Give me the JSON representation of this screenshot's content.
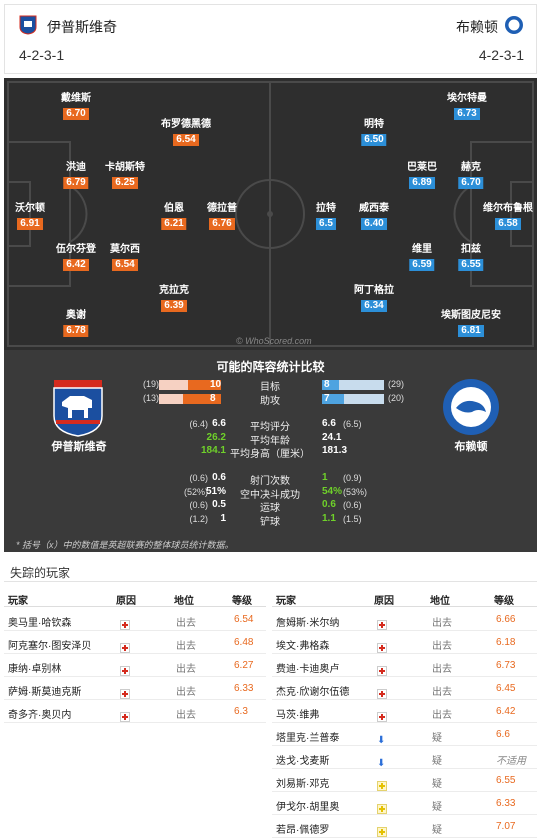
{
  "header": {
    "home_team": "伊普斯维奇",
    "away_team": "布赖顿",
    "home_formation": "4-2-3-1",
    "away_formation": "4-2-3-1"
  },
  "pitch": {
    "note": "© WhoScored.com",
    "home_players": [
      {
        "name": "戴维斯",
        "rating": "6.70"
      },
      {
        "name": "布罗德黑德",
        "rating": "6.54"
      },
      {
        "name": "洪迪",
        "rating": "6.79"
      },
      {
        "name": "卡胡斯特",
        "rating": "6.25"
      },
      {
        "name": "沃尔顿",
        "rating": "6.91"
      },
      {
        "name": "伯恩",
        "rating": "6.21"
      },
      {
        "name": "德拉普",
        "rating": "6.76"
      },
      {
        "name": "伍尔芬登",
        "rating": "6.42"
      },
      {
        "name": "莫尔西",
        "rating": "6.54"
      },
      {
        "name": "克拉克",
        "rating": "6.39"
      },
      {
        "name": "奥谢",
        "rating": "6.78"
      }
    ],
    "away_players": [
      {
        "name": "埃尔特曼",
        "rating": "6.73"
      },
      {
        "name": "明特",
        "rating": "6.50"
      },
      {
        "name": "巴莱巴",
        "rating": "6.89"
      },
      {
        "name": "赫克",
        "rating": "6.70"
      },
      {
        "name": "拉特",
        "rating": "6.5"
      },
      {
        "name": "威西泰",
        "rating": "6.40"
      },
      {
        "name": "维尔布鲁根",
        "rating": "6.58"
      },
      {
        "name": "维里",
        "rating": "6.59"
      },
      {
        "name": "扣兹",
        "rating": "6.55"
      },
      {
        "name": "阿丁格拉",
        "rating": "6.34"
      },
      {
        "name": "埃斯图皮尼安",
        "rating": "6.81"
      }
    ]
  },
  "compare": {
    "title": "可能的阵容统计比较",
    "home_label": "伊普斯维奇",
    "away_label": "布赖顿",
    "bar_rows": [
      {
        "label": "目标",
        "home_total": "(19)",
        "home_val": "10",
        "away_val": "8",
        "away_total": "(29)",
        "home_frac": 0.53,
        "away_frac": 0.28
      },
      {
        "label": "助攻",
        "home_total": "(13)",
        "home_val": "8",
        "away_val": "7",
        "away_total": "(20)",
        "home_frac": 0.62,
        "away_frac": 0.35
      }
    ],
    "rows1": [
      {
        "label": "平均评分",
        "home_prev": "(6.4)",
        "home_val": "6.6",
        "away_val": "6.6",
        "away_prev": "(6.5)",
        "home_green": false,
        "away_green": false
      },
      {
        "label": "平均年龄",
        "home_prev": "",
        "home_val": "26.2",
        "away_val": "24.1",
        "away_prev": "",
        "home_green": true,
        "away_green": false
      },
      {
        "label": "平均身高（厘米）",
        "home_prev": "",
        "home_val": "184.1",
        "away_val": "181.3",
        "away_prev": "",
        "home_green": true,
        "away_green": false
      }
    ],
    "rows2": [
      {
        "label": "射门次数",
        "home_prev": "(0.6)",
        "home_val": "0.6",
        "away_val": "1",
        "away_prev": "(0.9)",
        "home_green": false,
        "away_green": true
      },
      {
        "label": "空中决斗成功",
        "home_prev": "(52%)",
        "home_val": "51%",
        "away_val": "54%",
        "away_prev": "(53%)",
        "home_green": false,
        "away_green": true
      },
      {
        "label": "运球",
        "home_prev": "(0.6)",
        "home_val": "0.5",
        "away_val": "0.6",
        "away_prev": "(0.6)",
        "home_green": false,
        "away_green": true
      },
      {
        "label": "铲球",
        "home_prev": "(1.2)",
        "home_val": "1",
        "away_val": "1.1",
        "away_prev": "(1.5)",
        "home_green": false,
        "away_green": true
      }
    ],
    "footnote": "* 括号（x）中的数值是英超联赛的整体球员统计数据。"
  },
  "missing": {
    "title": "失踪的玩家",
    "headers": {
      "player": "玩家",
      "reason": "原因",
      "status": "地位",
      "rating": "等级"
    },
    "home": [
      {
        "player": "奥马里·哈钦森",
        "reason_icon": "injury-icon",
        "status": "出去",
        "rating": "6.54"
      },
      {
        "player": "阿克塞尔·图安泽贝",
        "reason_icon": "injury-icon",
        "status": "出去",
        "rating": "6.48"
      },
      {
        "player": "康纳·卓别林",
        "reason_icon": "injury-icon",
        "status": "出去",
        "rating": "6.27"
      },
      {
        "player": "萨姆·斯莫迪克斯",
        "reason_icon": "injury-icon",
        "status": "出去",
        "rating": "6.33"
      },
      {
        "player": "奇多齐·奥贝内",
        "reason_icon": "injury-icon",
        "status": "出去",
        "rating": "6.3"
      }
    ],
    "away": [
      {
        "player": "詹姆斯·米尔纳",
        "reason_icon": "injury-icon",
        "status": "出去",
        "rating": "6.66"
      },
      {
        "player": "埃文·弗格森",
        "reason_icon": "injury-icon",
        "status": "出去",
        "rating": "6.18"
      },
      {
        "player": "费迪·卡迪奥卢",
        "reason_icon": "injury-icon",
        "status": "出去",
        "rating": "6.73"
      },
      {
        "player": "杰克·欣谢尔伍德",
        "reason_icon": "injury-icon",
        "status": "出去",
        "rating": "6.45"
      },
      {
        "player": "马茨·维弗",
        "reason_icon": "injury-icon",
        "status": "出去",
        "rating": "6.42"
      },
      {
        "player": "塔里克·兰普泰",
        "reason_icon": "arrow-down-icon",
        "status": "疑",
        "rating": "6.6"
      },
      {
        "player": "迭戈·戈麦斯",
        "reason_icon": "arrow-down-icon",
        "status": "疑",
        "rating": "不适用"
      },
      {
        "player": "刘易斯·邓克",
        "reason_icon": "doubt-icon",
        "status": "疑",
        "rating": "6.55"
      },
      {
        "player": "伊戈尔·胡里奥",
        "reason_icon": "doubt-icon",
        "status": "疑",
        "rating": "6.33"
      },
      {
        "player": "若昂·佩德罗",
        "reason_icon": "doubt-icon",
        "status": "疑",
        "rating": "7.07"
      }
    ]
  }
}
